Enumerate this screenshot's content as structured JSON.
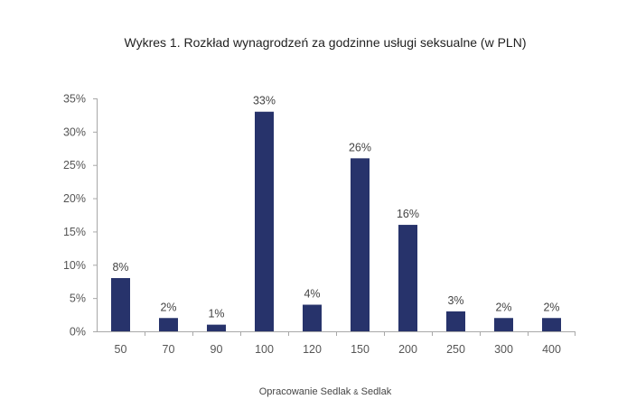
{
  "chart_data": {
    "type": "bar",
    "title": "Wykres 1. Rozkład wynagrodzeń za godzinne usługi seksualne (w PLN)",
    "xlabel": "",
    "ylabel": "",
    "categories": [
      "50",
      "70",
      "90",
      "100",
      "120",
      "150",
      "200",
      "250",
      "300",
      "400"
    ],
    "values": [
      8,
      2,
      1,
      33,
      4,
      26,
      16,
      3,
      2,
      2
    ],
    "data_labels": [
      "8%",
      "2%",
      "1%",
      "33%",
      "4%",
      "26%",
      "16%",
      "3%",
      "2%",
      "2%"
    ],
    "yticks": [
      "0%",
      "5%",
      "10%",
      "15%",
      "20%",
      "25%",
      "30%",
      "35%"
    ],
    "ylim": [
      0,
      35
    ],
    "grid": false,
    "legend": "none",
    "bar_color": "#27336b",
    "source": {
      "prefix": "Opracowanie Sedlak",
      "amp": "&",
      "suffix": "Sedlak"
    }
  }
}
